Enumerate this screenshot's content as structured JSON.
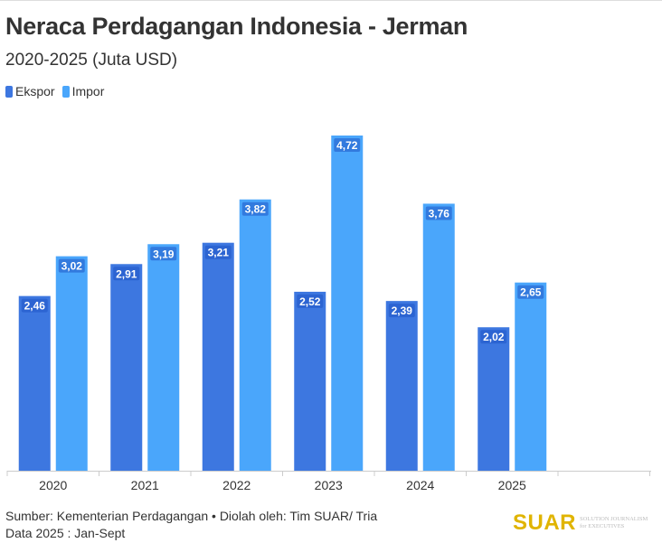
{
  "chart_data": {
    "type": "bar",
    "title": "Neraca Perdagangan Indonesia - Jerman",
    "subtitle": "2020-2025 (Juta USD)",
    "categories": [
      "2020",
      "2021",
      "2022",
      "2023",
      "2024",
      "2025"
    ],
    "series": [
      {
        "name": "Ekspor",
        "color": "#3d77e0",
        "values": [
          2.46,
          2.91,
          3.21,
          2.52,
          2.39,
          2.02
        ],
        "labels": [
          "2,46",
          "2,91",
          "3,21",
          "2,52",
          "2,39",
          "2,02"
        ]
      },
      {
        "name": "Impor",
        "color": "#4aa6fb",
        "values": [
          3.02,
          3.19,
          3.82,
          4.72,
          3.76,
          2.65
        ],
        "labels": [
          "3,02",
          "3,19",
          "3,82",
          "4,72",
          "3,76",
          "2,65"
        ]
      }
    ],
    "ylim": [
      0,
      4.72
    ],
    "grid": false,
    "legend": "top-left"
  },
  "footer": {
    "source": "Sumber: Kementerian Perdagangan • Diolah oleh: Tim SUAR/ Tria",
    "note": "Data 2025 : Jan-Sept"
  },
  "logo": {
    "name": "SUAR",
    "tagline1": "SOLUTION JOURNALISM",
    "tagline2": "for EXECUTIVES"
  }
}
